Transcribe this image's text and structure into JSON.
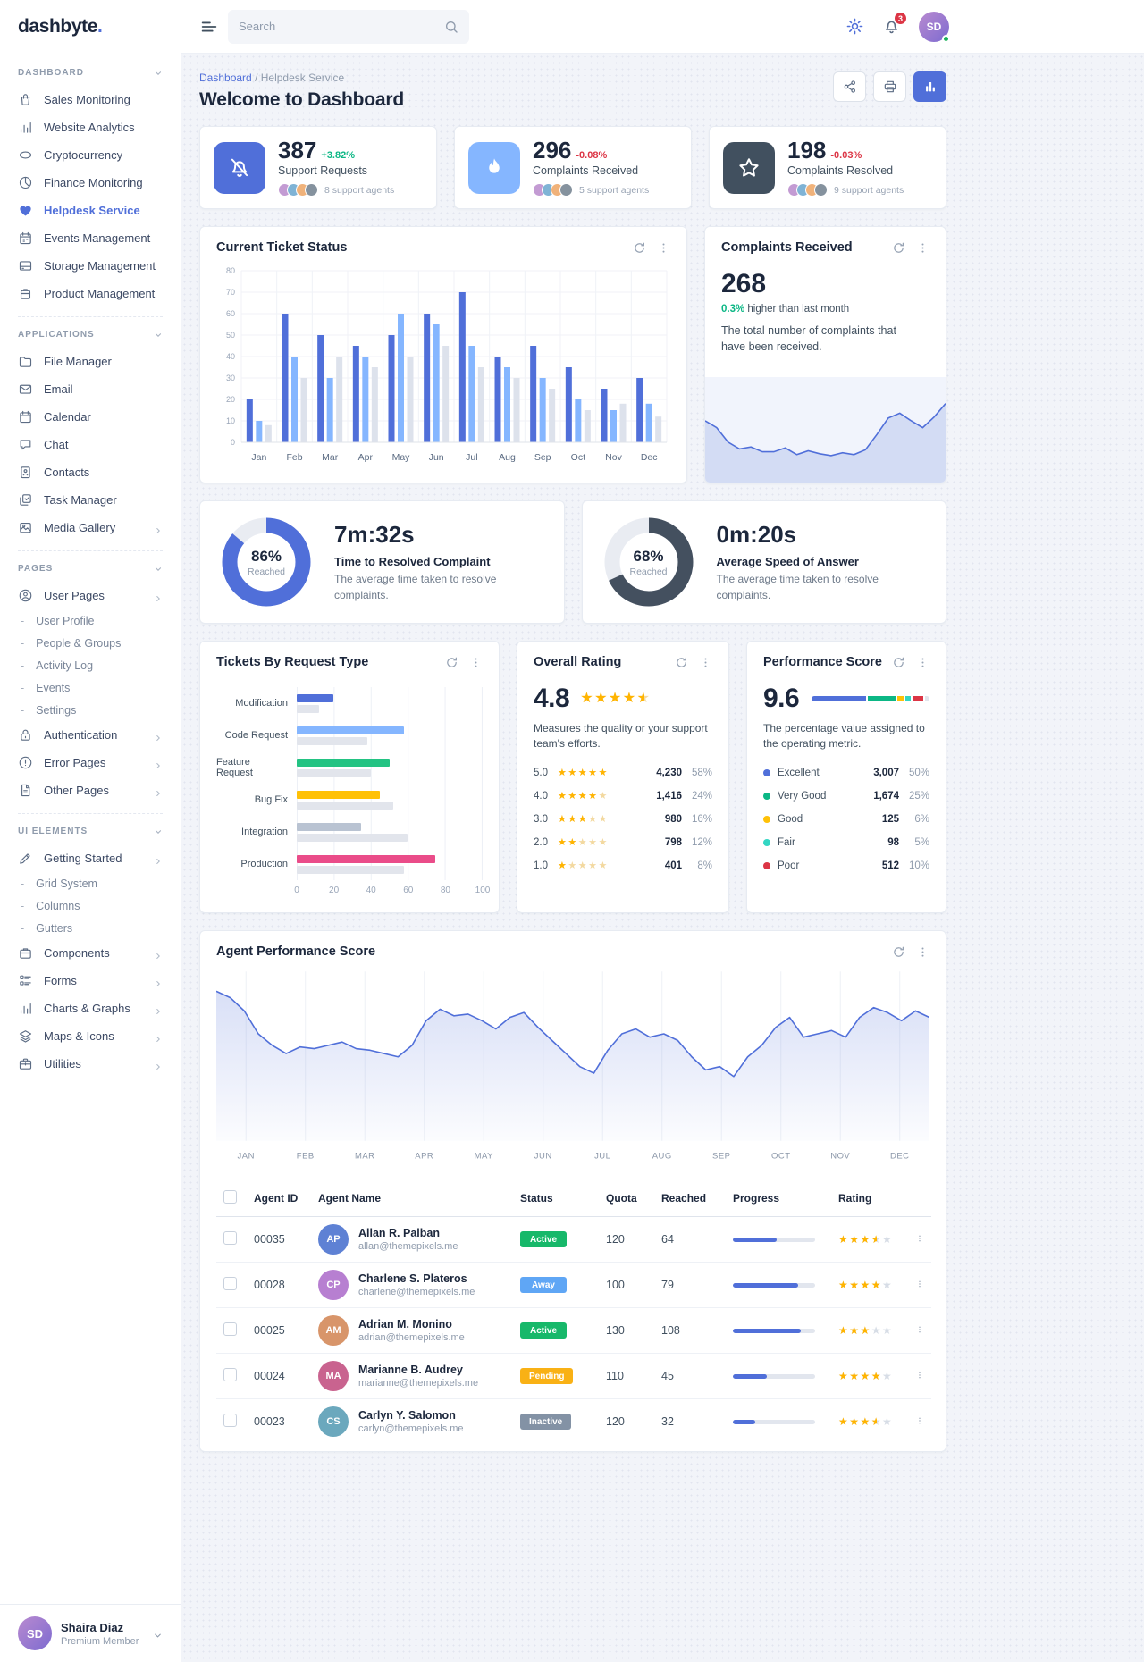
{
  "app": {
    "logo": "dashbyte",
    "logo_dot": "."
  },
  "header": {
    "search_placeholder": "Search",
    "notification_count": "3"
  },
  "sidebar": {
    "sections": [
      {
        "title": "DASHBOARD",
        "items": [
          {
            "label": "Sales Monitoring",
            "icon": "shop-bag"
          },
          {
            "label": "Website Analytics",
            "icon": "bar-chart"
          },
          {
            "label": "Cryptocurrency",
            "icon": "coin"
          },
          {
            "label": "Finance Monitoring",
            "icon": "clock-pie"
          },
          {
            "label": "Helpdesk Service",
            "icon": "helpdesk",
            "active": true
          },
          {
            "label": "Events Management",
            "icon": "calendar-event"
          },
          {
            "label": "Storage Management",
            "icon": "storage"
          },
          {
            "label": "Product Management",
            "icon": "product"
          }
        ]
      },
      {
        "title": "APPLICATIONS",
        "items": [
          {
            "label": "File Manager",
            "icon": "folder"
          },
          {
            "label": "Email",
            "icon": "email"
          },
          {
            "label": "Calendar",
            "icon": "calendar"
          },
          {
            "label": "Chat",
            "icon": "chat"
          },
          {
            "label": "Contacts",
            "icon": "contacts"
          },
          {
            "label": "Task Manager",
            "icon": "tasks"
          },
          {
            "label": "Media Gallery",
            "icon": "media",
            "expandable": true
          }
        ]
      },
      {
        "title": "PAGES",
        "items": [
          {
            "label": "User Pages",
            "icon": "user-circle",
            "expandable": true
          },
          {
            "label": "User Profile",
            "sub": true
          },
          {
            "label": "People & Groups",
            "sub": true
          },
          {
            "label": "Activity Log",
            "sub": true
          },
          {
            "label": "Events",
            "sub": true
          },
          {
            "label": "Settings",
            "sub": true
          },
          {
            "label": "Authentication",
            "icon": "lock",
            "expandable": true
          },
          {
            "label": "Error Pages",
            "icon": "alert-circle",
            "expandable": true
          },
          {
            "label": "Other Pages",
            "icon": "file",
            "expandable": true
          }
        ]
      },
      {
        "title": "UI ELEMENTS",
        "items": [
          {
            "label": "Getting Started",
            "icon": "tools",
            "expandable": true
          },
          {
            "label": "Grid System",
            "sub": true
          },
          {
            "label": "Columns",
            "sub": true
          },
          {
            "label": "Gutters",
            "sub": true
          },
          {
            "label": "Components",
            "icon": "components",
            "expandable": true
          },
          {
            "label": "Forms",
            "icon": "forms",
            "expandable": true
          },
          {
            "label": "Charts & Graphs",
            "icon": "bar-chart",
            "expandable": true
          },
          {
            "label": "Maps & Icons",
            "icon": "layers",
            "expandable": true
          },
          {
            "label": "Utilities",
            "icon": "briefcase",
            "expandable": true
          }
        ]
      }
    ],
    "user": {
      "name": "Shaira Diaz",
      "role": "Premium Member"
    }
  },
  "page": {
    "breadcrumb_home": "Dashboard",
    "breadcrumb_sep": "/",
    "breadcrumb_current": "Helpdesk Service",
    "title": "Welcome to Dashboard"
  },
  "kpis": [
    {
      "value": "387",
      "delta": "+3.82%",
      "delta_dir": "up",
      "label": "Support Requests",
      "agents": "8 support agents",
      "icon": "bell-off",
      "icon_bg": "#506fd9"
    },
    {
      "value": "296",
      "delta": "-0.08%",
      "delta_dir": "down",
      "label": "Complaints Received",
      "agents": "5 support agents",
      "icon": "flame",
      "icon_bg": "#85b6ff"
    },
    {
      "value": "198",
      "delta": "-0.03%",
      "delta_dir": "down",
      "label": "Complaints Resolved",
      "agents": "9 support agents",
      "icon": "star",
      "icon_bg": "#41505f"
    }
  ],
  "cards": {
    "ticket_status": {
      "title": "Current Ticket Status"
    },
    "complaints": {
      "title": "Complaints Received",
      "value": "268",
      "delta": "0.3%",
      "delta_suffix": " higher than last month",
      "description": "The total number of complaints that have been received."
    },
    "resolved_time": {
      "pct": 86,
      "pct_label": "86%",
      "reached": "Reached",
      "value": "7m:32s",
      "title": "Time to Resolved Complaint",
      "description": "The average time taken to resolve complaints.",
      "color": "#506fd9"
    },
    "answer_speed": {
      "pct": 68,
      "pct_label": "68%",
      "reached": "Reached",
      "value": "0m:20s",
      "title": "Average Speed of Answer",
      "description": "The average time taken to resolve complaints.",
      "color": "#44505f"
    },
    "request_type": {
      "title": "Tickets By Request Type"
    },
    "overall_rating": {
      "title": "Overall Rating",
      "score": "4.8",
      "score_stars": 4.5,
      "description": "Measures the quality or your support team's efforts.",
      "rows": [
        {
          "label": "5.0",
          "stars": 5,
          "value": "4,230",
          "pct": "58%"
        },
        {
          "label": "4.0",
          "stars": 4,
          "value": "1,416",
          "pct": "24%"
        },
        {
          "label": "3.0",
          "stars": 3,
          "value": "980",
          "pct": "16%"
        },
        {
          "label": "2.0",
          "stars": 2,
          "value": "798",
          "pct": "12%"
        },
        {
          "label": "1.0",
          "stars": 1,
          "value": "401",
          "pct": "8%"
        }
      ]
    },
    "performance": {
      "title": "Performance Score",
      "score": "9.6",
      "description": "The percentage value assigned to the operating metric.",
      "rows": [
        {
          "label": "Excellent",
          "color": "#506fd9",
          "value": "3,007",
          "pct": "50%",
          "pct_num": 50
        },
        {
          "label": "Very Good",
          "color": "#0cb785",
          "value": "1,674",
          "pct": "25%",
          "pct_num": 25
        },
        {
          "label": "Good",
          "color": "#ffc107",
          "value": "125",
          "pct": "6%",
          "pct_num": 6
        },
        {
          "label": "Fair",
          "color": "#33d6c3",
          "value": "98",
          "pct": "5%",
          "pct_num": 5
        },
        {
          "label": "Poor",
          "color": "#dc3545",
          "value": "512",
          "pct": "10%",
          "pct_num": 10
        }
      ],
      "remainder_color": "#e2e5ec"
    },
    "agent_perf": {
      "title": "Agent Performance Score"
    }
  },
  "chart_data": {
    "ticket_status": {
      "type": "bar",
      "categories": [
        "Jan",
        "Feb",
        "Mar",
        "Apr",
        "May",
        "Jun",
        "Jul",
        "Aug",
        "Sep",
        "Oct",
        "Nov",
        "Dec"
      ],
      "ylim": [
        0,
        80
      ],
      "ytick_step": 10,
      "series": [
        {
          "name": "series-1",
          "color": "#506fd9",
          "values": [
            20,
            60,
            50,
            45,
            50,
            60,
            70,
            40,
            45,
            35,
            25,
            30
          ]
        },
        {
          "name": "series-2",
          "color": "#85b6ff",
          "values": [
            10,
            40,
            30,
            40,
            60,
            55,
            45,
            35,
            30,
            20,
            15,
            18
          ]
        },
        {
          "name": "series-3",
          "color": "#dde2ec",
          "values": [
            8,
            30,
            40,
            35,
            40,
            45,
            35,
            30,
            25,
            15,
            18,
            12
          ]
        }
      ]
    },
    "complaints_trend": {
      "type": "area",
      "ylim": [
        0,
        100
      ],
      "points": [
        62,
        55,
        40,
        33,
        35,
        30,
        30,
        34,
        27,
        31,
        28,
        26,
        29,
        27,
        32,
        48,
        65,
        70,
        62,
        55,
        66,
        80
      ]
    },
    "request_types": {
      "type": "hbar",
      "categories": [
        "Modification",
        "Code Request",
        "Feature Request",
        "Bug Fix",
        "Integration",
        "Production"
      ],
      "values": [
        20,
        58,
        50,
        45,
        35,
        75
      ],
      "benchmarks": [
        12,
        38,
        40,
        52,
        60,
        58
      ],
      "colors": [
        "#506fd9",
        "#85b6ff",
        "#23c383",
        "#ffc107",
        "#b9c3d2",
        "#ea4c89"
      ],
      "benchmark_color": "#e2e5ec",
      "xticks": [
        "0",
        "20",
        "40",
        "60",
        "80",
        "100"
      ],
      "xlim": [
        0,
        100
      ]
    },
    "agent_performance": {
      "type": "line",
      "color": "#506fd9",
      "ylim": [
        0,
        100
      ],
      "x_labels": [
        "JAN",
        "FEB",
        "MAR",
        "APR",
        "MAY",
        "JUN",
        "JUL",
        "AUG",
        "SEP",
        "OCT",
        "NOV",
        "DEC"
      ],
      "points": [
        88,
        84,
        76,
        62,
        55,
        50,
        54,
        53,
        55,
        57,
        53,
        52,
        50,
        48,
        55,
        70,
        77,
        73,
        74,
        70,
        65,
        72,
        75,
        66,
        58,
        50,
        42,
        38,
        52,
        62,
        65,
        60,
        62,
        58,
        48,
        40,
        42,
        36,
        48,
        55,
        66,
        72,
        60,
        62,
        64,
        60,
        72,
        78,
        75,
        70,
        76,
        72
      ]
    }
  },
  "table": {
    "columns": [
      "Agent ID",
      "Agent Name",
      "Status",
      "Quota",
      "Reached",
      "Progress",
      "Rating"
    ],
    "rows": [
      {
        "id": "00035",
        "name": "Allan R. Palban",
        "email": "allan@themepixels.me",
        "status": "Active",
        "status_color": "#17b86a",
        "quota": "120",
        "reached": "64",
        "progress_pct": 53,
        "rating": 3.5
      },
      {
        "id": "00028",
        "name": "Charlene S. Plateros",
        "email": "charlene@themepixels.me",
        "status": "Away",
        "status_color": "#5fa6f5",
        "quota": "100",
        "reached": "79",
        "progress_pct": 79,
        "rating": 4
      },
      {
        "id": "00025",
        "name": "Adrian M. Monino",
        "email": "adrian@themepixels.me",
        "status": "Active",
        "status_color": "#17b86a",
        "quota": "130",
        "reached": "108",
        "progress_pct": 83,
        "rating": 3
      },
      {
        "id": "00024",
        "name": "Marianne B. Audrey",
        "email": "marianne@themepixels.me",
        "status": "Pending",
        "status_color": "#f9b115",
        "quota": "110",
        "reached": "45",
        "progress_pct": 41,
        "rating": 4
      },
      {
        "id": "00023",
        "name": "Carlyn Y. Salomon",
        "email": "carlyn@themepixels.me",
        "status": "Inactive",
        "status_color": "#8392a5",
        "quota": "120",
        "reached": "32",
        "progress_pct": 27,
        "rating": 3.5
      }
    ]
  }
}
